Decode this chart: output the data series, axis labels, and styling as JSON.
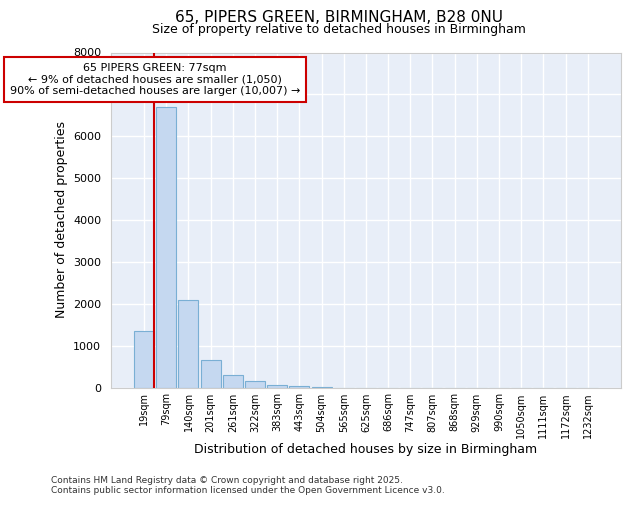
{
  "title_line1": "65, PIPERS GREEN, BIRMINGHAM, B28 0NU",
  "title_line2": "Size of property relative to detached houses in Birmingham",
  "xlabel": "Distribution of detached houses by size in Birmingham",
  "ylabel": "Number of detached properties",
  "bar_labels": [
    "19sqm",
    "79sqm",
    "140sqm",
    "201sqm",
    "261sqm",
    "322sqm",
    "383sqm",
    "443sqm",
    "504sqm",
    "565sqm",
    "625sqm",
    "686sqm",
    "747sqm",
    "807sqm",
    "868sqm",
    "929sqm",
    "990sqm",
    "1050sqm",
    "1111sqm",
    "1172sqm",
    "1232sqm"
  ],
  "bar_values": [
    1350,
    6700,
    2100,
    650,
    310,
    150,
    70,
    30,
    5,
    0,
    0,
    0,
    0,
    0,
    0,
    0,
    0,
    0,
    0,
    0,
    0
  ],
  "bar_color": "#c5d8f0",
  "bar_edge_color": "#7aafd4",
  "plot_bg_color": "#e8eef8",
  "fig_bg_color": "#ffffff",
  "grid_color": "#ffffff",
  "ylim": [
    0,
    8000
  ],
  "yticks": [
    0,
    1000,
    2000,
    3000,
    4000,
    5000,
    6000,
    7000,
    8000
  ],
  "vline_color": "#cc0000",
  "property_label": "65 PIPERS GREEN: 77sqm",
  "annotation_line1": "← 9% of detached houses are smaller (1,050)",
  "annotation_line2": "90% of semi-detached houses are larger (10,007) →",
  "footnote_line1": "Contains HM Land Registry data © Crown copyright and database right 2025.",
  "footnote_line2": "Contains public sector information licensed under the Open Government Licence v3.0."
}
